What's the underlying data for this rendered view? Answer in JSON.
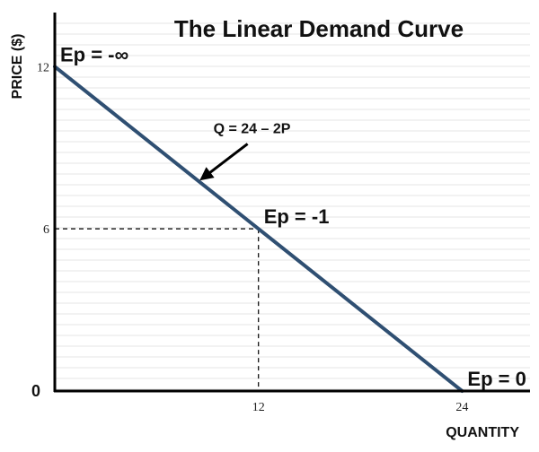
{
  "chart_data": {
    "type": "line",
    "title": "The Linear Demand Curve",
    "xlabel": "QUANTITY",
    "ylabel": "PRICE ($)",
    "xlim": [
      0,
      28
    ],
    "ylim": [
      0,
      14
    ],
    "grid": true,
    "x_ticks": [
      {
        "value": 12,
        "label": "12"
      },
      {
        "value": 24,
        "label": "24"
      }
    ],
    "y_ticks": [
      {
        "value": 12,
        "label": "12"
      },
      {
        "value": 6,
        "label": "6"
      }
    ],
    "origin_label": "0",
    "series": [
      {
        "x": [
          0,
          12,
          24
        ],
        "y": [
          12,
          6,
          0
        ],
        "color": "#2f4f72"
      }
    ],
    "guides": [
      {
        "x": 12,
        "y": 6
      }
    ],
    "annotations": [
      {
        "text": "Ep = -∞",
        "x": 0,
        "y": 12
      },
      {
        "text": "Ep = -1",
        "x": 12,
        "y": 6
      },
      {
        "text": "Ep = 0",
        "x": 24,
        "y": 0
      },
      {
        "text": "Q = 24 – 2P",
        "x": 8.5,
        "y": 7.75,
        "arrow": true
      }
    ]
  }
}
